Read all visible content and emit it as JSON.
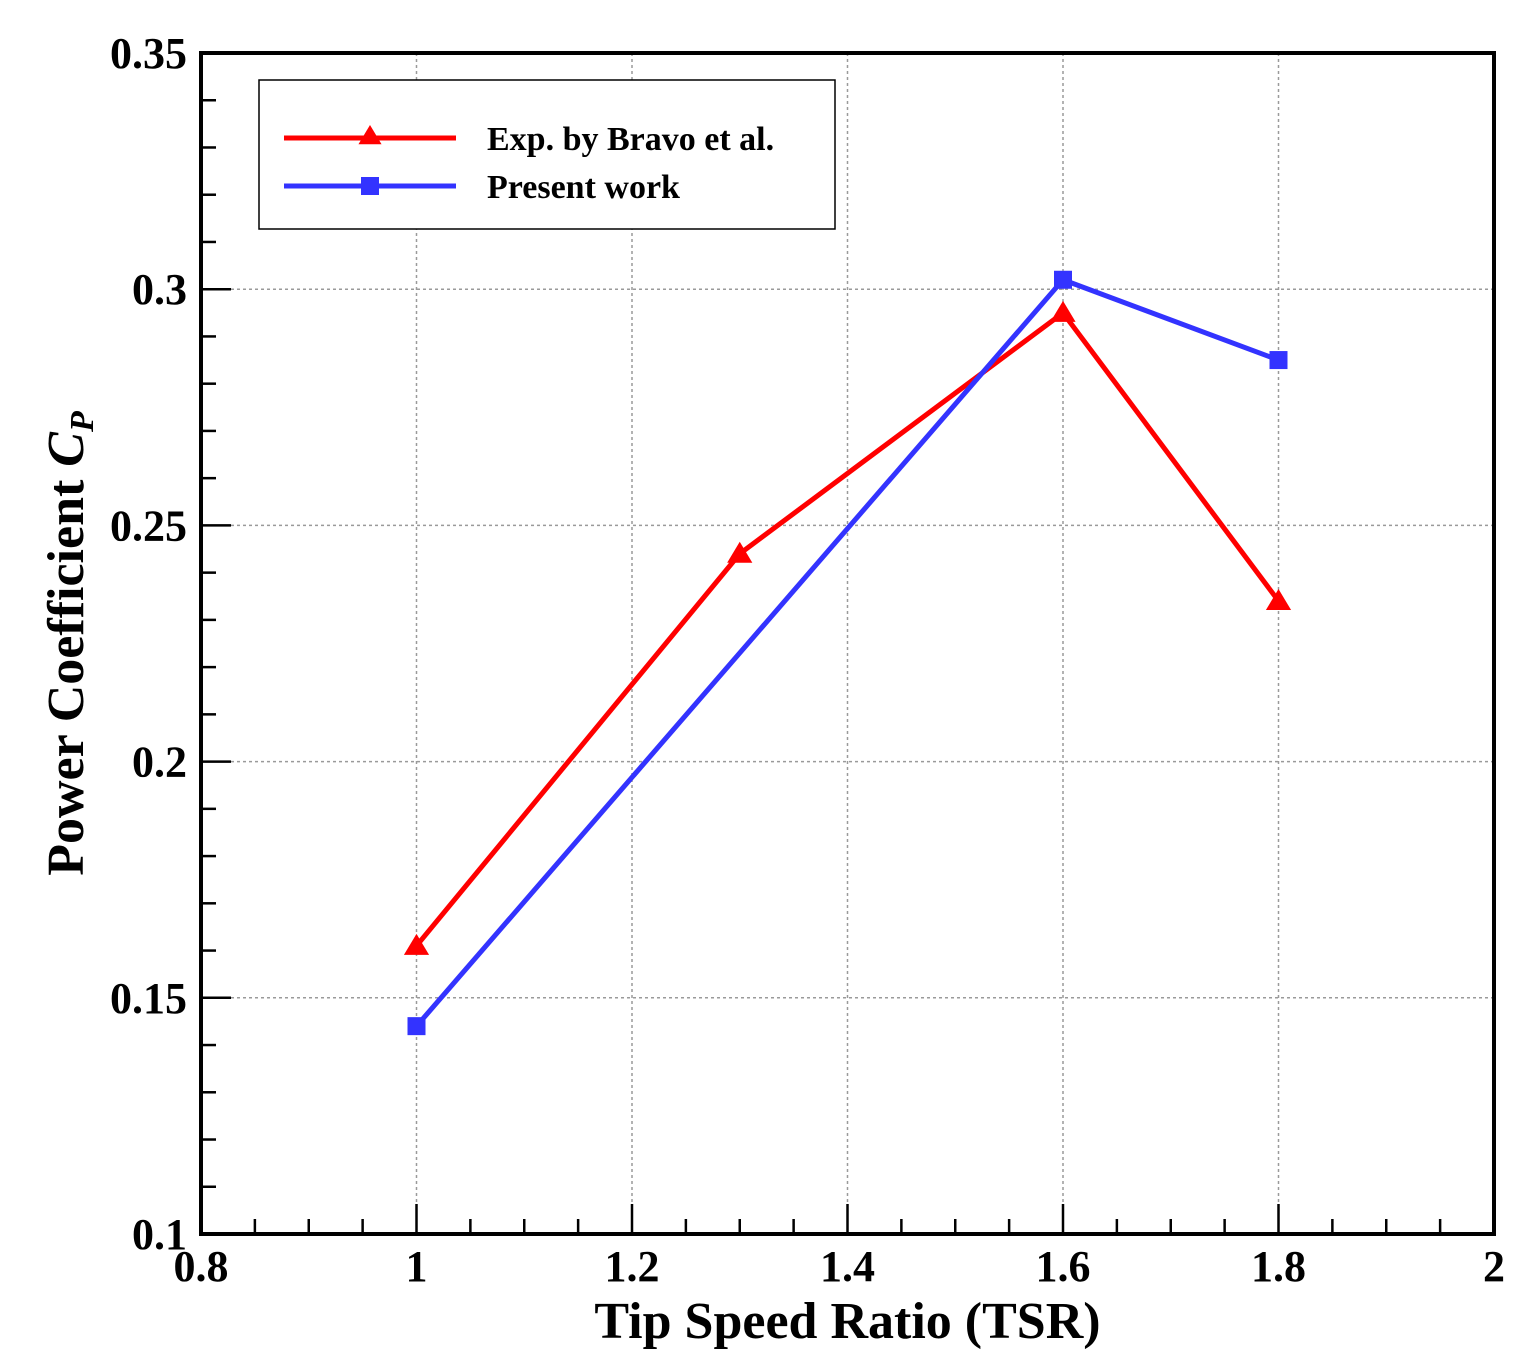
{
  "chart_data": {
    "type": "line",
    "title": "",
    "xlabel": "Tip Speed Ratio (TSR)",
    "ylabel": {
      "main": "Power Coefficient ",
      "symbol": "C",
      "subscript": "P"
    },
    "xlim": [
      0.8,
      2.0
    ],
    "ylim": [
      0.1,
      0.35
    ],
    "xticks": [
      0.8,
      1.0,
      1.2,
      1.4,
      1.6,
      1.8,
      2.0
    ],
    "xtick_labels": [
      "0.8",
      "1",
      "1.2",
      "1.4",
      "1.6",
      "1.8",
      "2"
    ],
    "yticks": [
      0.1,
      0.15,
      0.2,
      0.25,
      0.3,
      0.35
    ],
    "ytick_labels": [
      "0.1",
      "0.15",
      "0.2",
      "0.25",
      "0.3",
      "0.35"
    ],
    "x_minor_step": 0.05,
    "y_minor_step": 0.01,
    "grid": true,
    "legend_position": "top-left",
    "series": [
      {
        "name": "Exp. by Bravo et al.",
        "color": "#ff0000",
        "marker": "triangle",
        "x": [
          1.0,
          1.3,
          1.6,
          1.8
        ],
        "y": [
          0.161,
          0.244,
          0.295,
          0.234
        ]
      },
      {
        "name": "Present work",
        "color": "#3333ff",
        "marker": "square",
        "x": [
          1.0,
          1.6,
          1.8
        ],
        "y": [
          0.144,
          0.302,
          0.285
        ]
      }
    ]
  }
}
